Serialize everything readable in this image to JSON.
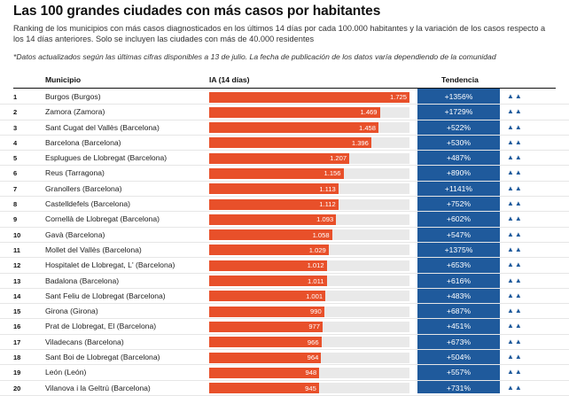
{
  "title": "Las 100 grandes ciudades con más casos por habitantes",
  "subtitle": "Ranking de los municipios con más casos diagnosticados en los últimos 14 días por cada 100.000 habitantes y la variación de los casos respecto a los 14 días anteriores. Solo se incluyen las ciudades con más de 40.000 residentes",
  "note": "*Datos actualizados según las últimas cifras disponibles a 13 de julio. La fecha de publicación de los datos varía dependiendo de la comunidad",
  "columns": {
    "municipio": "Municipio",
    "ia": "IA (14 días)",
    "tendencia": "Tendencia"
  },
  "colors": {
    "bar": "#e8502a",
    "track": "#e9e9e9",
    "tendencia_bg": "#1f5a9c"
  },
  "ia_max": 1725,
  "rows": [
    {
      "rank": "1",
      "city": "Burgos (Burgos)",
      "ia": 1725,
      "ia_label": "1.725",
      "pct": "+1356%",
      "arrows": "▲▲"
    },
    {
      "rank": "2",
      "city": "Zamora (Zamora)",
      "ia": 1469,
      "ia_label": "1.469",
      "pct": "+1729%",
      "arrows": "▲▲"
    },
    {
      "rank": "3",
      "city": "Sant Cugat del Vallès (Barcelona)",
      "ia": 1458,
      "ia_label": "1.458",
      "pct": "+522%",
      "arrows": "▲▲"
    },
    {
      "rank": "4",
      "city": "Barcelona (Barcelona)",
      "ia": 1396,
      "ia_label": "1.396",
      "pct": "+530%",
      "arrows": "▲▲"
    },
    {
      "rank": "5",
      "city": "Esplugues de Llobregat (Barcelona)",
      "ia": 1207,
      "ia_label": "1.207",
      "pct": "+487%",
      "arrows": "▲▲"
    },
    {
      "rank": "6",
      "city": "Reus (Tarragona)",
      "ia": 1156,
      "ia_label": "1.156",
      "pct": "+890%",
      "arrows": "▲▲"
    },
    {
      "rank": "7",
      "city": "Granollers (Barcelona)",
      "ia": 1113,
      "ia_label": "1.113",
      "pct": "+1141%",
      "arrows": "▲▲"
    },
    {
      "rank": "8",
      "city": "Castelldefels (Barcelona)",
      "ia": 1112,
      "ia_label": "1.112",
      "pct": "+752%",
      "arrows": "▲▲"
    },
    {
      "rank": "9",
      "city": "Cornellà de Llobregat (Barcelona)",
      "ia": 1093,
      "ia_label": "1.093",
      "pct": "+602%",
      "arrows": "▲▲"
    },
    {
      "rank": "10",
      "city": "Gavà (Barcelona)",
      "ia": 1058,
      "ia_label": "1.058",
      "pct": "+547%",
      "arrows": "▲▲"
    },
    {
      "rank": "11",
      "city": "Mollet del Vallès (Barcelona)",
      "ia": 1029,
      "ia_label": "1.029",
      "pct": "+1375%",
      "arrows": "▲▲"
    },
    {
      "rank": "12",
      "city": "Hospitalet de Llobregat, L' (Barcelona)",
      "ia": 1012,
      "ia_label": "1.012",
      "pct": "+653%",
      "arrows": "▲▲"
    },
    {
      "rank": "13",
      "city": "Badalona (Barcelona)",
      "ia": 1011,
      "ia_label": "1.011",
      "pct": "+616%",
      "arrows": "▲▲"
    },
    {
      "rank": "14",
      "city": "Sant Feliu de Llobregat (Barcelona)",
      "ia": 1001,
      "ia_label": "1.001",
      "pct": "+483%",
      "arrows": "▲▲"
    },
    {
      "rank": "15",
      "city": "Girona (Girona)",
      "ia": 990,
      "ia_label": "990",
      "pct": "+687%",
      "arrows": "▲▲"
    },
    {
      "rank": "16",
      "city": "Prat de Llobregat, El (Barcelona)",
      "ia": 977,
      "ia_label": "977",
      "pct": "+451%",
      "arrows": "▲▲"
    },
    {
      "rank": "17",
      "city": "Viladecans (Barcelona)",
      "ia": 966,
      "ia_label": "966",
      "pct": "+673%",
      "arrows": "▲▲"
    },
    {
      "rank": "18",
      "city": "Sant Boi de Llobregat (Barcelona)",
      "ia": 964,
      "ia_label": "964",
      "pct": "+504%",
      "arrows": "▲▲"
    },
    {
      "rank": "19",
      "city": "León (León)",
      "ia": 948,
      "ia_label": "948",
      "pct": "+557%",
      "arrows": "▲▲"
    },
    {
      "rank": "20",
      "city": "Vilanova i la Geltrú (Barcelona)",
      "ia": 945,
      "ia_label": "945",
      "pct": "+731%",
      "arrows": "▲▲"
    }
  ]
}
